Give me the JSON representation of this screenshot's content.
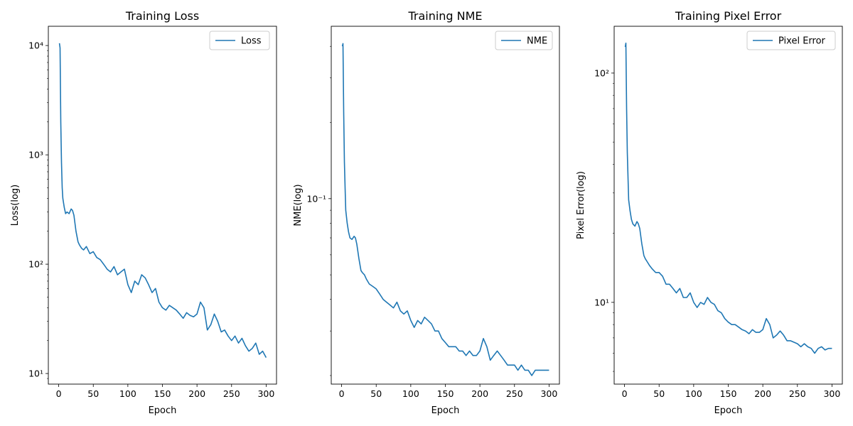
{
  "figure": {
    "line_color": "#1f77b4"
  },
  "chart_data": [
    {
      "type": "line",
      "title": "Training Loss",
      "xlabel": "Epoch",
      "ylabel": "Loss(log)",
      "yscale": "log",
      "xlim": [
        -15,
        315
      ],
      "ylim": [
        8,
        15000
      ],
      "xticks": [
        0,
        50,
        100,
        150,
        200,
        250,
        300
      ],
      "xtick_labels": [
        "0",
        "50",
        "100",
        "150",
        "200",
        "250",
        "300"
      ],
      "yticks": [
        10,
        100,
        1000,
        10000
      ],
      "ytick_labels": [
        "10¹",
        "10²",
        "10³",
        "10⁴"
      ],
      "legend_position": "top-right",
      "grid": false,
      "series": [
        {
          "name": "Loss",
          "x": [
            1,
            2,
            3,
            4,
            5,
            6,
            8,
            10,
            12,
            15,
            18,
            20,
            22,
            25,
            28,
            30,
            33,
            36,
            40,
            45,
            50,
            55,
            60,
            65,
            70,
            75,
            80,
            85,
            90,
            95,
            100,
            105,
            110,
            115,
            120,
            125,
            130,
            135,
            140,
            145,
            150,
            155,
            160,
            165,
            170,
            175,
            180,
            185,
            190,
            195,
            200,
            205,
            210,
            215,
            220,
            225,
            230,
            235,
            240,
            245,
            250,
            255,
            260,
            265,
            270,
            275,
            280,
            285,
            290,
            295,
            300
          ],
          "y": [
            10500,
            9500,
            2000,
            850,
            500,
            400,
            330,
            290,
            300,
            290,
            320,
            310,
            280,
            200,
            160,
            150,
            140,
            135,
            145,
            125,
            130,
            115,
            110,
            100,
            90,
            85,
            95,
            80,
            85,
            90,
            65,
            55,
            70,
            65,
            80,
            75,
            65,
            55,
            60,
            45,
            40,
            38,
            42,
            40,
            38,
            35,
            32,
            36,
            34,
            33,
            35,
            45,
            40,
            25,
            28,
            35,
            30,
            24,
            25,
            22,
            20,
            22,
            19,
            21,
            18,
            16,
            17,
            19,
            15,
            16,
            14
          ]
        }
      ]
    },
    {
      "type": "line",
      "title": "Training NME",
      "xlabel": "Epoch",
      "ylabel": "NME(log)",
      "yscale": "log",
      "xlim": [
        -15,
        315
      ],
      "ylim": [
        0.0185,
        0.48
      ],
      "xticks": [
        0,
        50,
        100,
        150,
        200,
        250,
        300
      ],
      "xtick_labels": [
        "0",
        "50",
        "100",
        "150",
        "200",
        "250",
        "300"
      ],
      "yticks": [
        0.1
      ],
      "ytick_labels": [
        "10⁻¹"
      ],
      "legend_position": "top-right",
      "grid": false,
      "series": [
        {
          "name": "NME",
          "x": [
            1,
            2,
            3,
            4,
            5,
            6,
            8,
            10,
            12,
            15,
            18,
            20,
            22,
            25,
            28,
            30,
            33,
            36,
            40,
            45,
            50,
            55,
            60,
            65,
            70,
            75,
            80,
            85,
            90,
            95,
            100,
            105,
            110,
            115,
            120,
            125,
            130,
            135,
            140,
            145,
            150,
            155,
            160,
            165,
            170,
            175,
            180,
            185,
            190,
            195,
            200,
            205,
            210,
            215,
            220,
            225,
            230,
            235,
            240,
            245,
            250,
            255,
            260,
            265,
            270,
            275,
            280,
            285,
            290,
            295,
            300
          ],
          "y": [
            0.4,
            0.41,
            0.22,
            0.14,
            0.11,
            0.09,
            0.08,
            0.074,
            0.07,
            0.069,
            0.071,
            0.07,
            0.066,
            0.058,
            0.052,
            0.051,
            0.05,
            0.048,
            0.046,
            0.045,
            0.044,
            0.042,
            0.04,
            0.039,
            0.038,
            0.037,
            0.039,
            0.036,
            0.035,
            0.036,
            0.033,
            0.031,
            0.033,
            0.032,
            0.034,
            0.033,
            0.032,
            0.03,
            0.03,
            0.028,
            0.027,
            0.026,
            0.026,
            0.026,
            0.025,
            0.025,
            0.024,
            0.025,
            0.024,
            0.024,
            0.025,
            0.028,
            0.026,
            0.023,
            0.024,
            0.025,
            0.024,
            0.023,
            0.022,
            0.022,
            0.022,
            0.021,
            0.022,
            0.021,
            0.021,
            0.02,
            0.021,
            0.021,
            0.021,
            0.021,
            0.021
          ]
        }
      ]
    },
    {
      "type": "line",
      "title": "Training Pixel Error",
      "xlabel": "Epoch",
      "ylabel": "Pixel Error(log)",
      "yscale": "log",
      "xlim": [
        -15,
        315
      ],
      "ylim": [
        4.4,
        160
      ],
      "xticks": [
        0,
        50,
        100,
        150,
        200,
        250,
        300
      ],
      "xtick_labels": [
        "0",
        "50",
        "100",
        "150",
        "200",
        "250",
        "300"
      ],
      "yticks": [
        10,
        100
      ],
      "ytick_labels": [
        "10¹",
        "10²"
      ],
      "legend_position": "top-right",
      "grid": false,
      "series": [
        {
          "name": "Pixel Error",
          "x": [
            1,
            2,
            3,
            4,
            5,
            6,
            8,
            10,
            12,
            15,
            18,
            20,
            22,
            25,
            28,
            30,
            33,
            36,
            40,
            45,
            50,
            55,
            60,
            65,
            70,
            75,
            80,
            85,
            90,
            95,
            100,
            105,
            110,
            115,
            120,
            125,
            130,
            135,
            140,
            145,
            150,
            155,
            160,
            165,
            170,
            175,
            180,
            185,
            190,
            195,
            200,
            205,
            210,
            215,
            220,
            225,
            230,
            235,
            240,
            245,
            250,
            255,
            260,
            265,
            270,
            275,
            280,
            285,
            290,
            295,
            300
          ],
          "y": [
            130,
            135,
            70,
            45,
            35,
            28,
            25,
            23,
            22,
            21.5,
            22.5,
            22,
            21,
            18,
            16,
            15.5,
            15,
            14.5,
            14,
            13.5,
            13.5,
            13,
            12,
            12,
            11.5,
            11,
            11.5,
            10.5,
            10.5,
            11,
            10,
            9.5,
            10,
            9.8,
            10.5,
            10,
            9.8,
            9.2,
            9,
            8.5,
            8.2,
            8,
            8,
            7.8,
            7.6,
            7.5,
            7.3,
            7.6,
            7.4,
            7.4,
            7.6,
            8.5,
            8,
            7,
            7.2,
            7.5,
            7.2,
            6.8,
            6.8,
            6.7,
            6.6,
            6.4,
            6.6,
            6.4,
            6.3,
            6,
            6.3,
            6.4,
            6.2,
            6.3,
            6.3
          ]
        }
      ]
    }
  ]
}
